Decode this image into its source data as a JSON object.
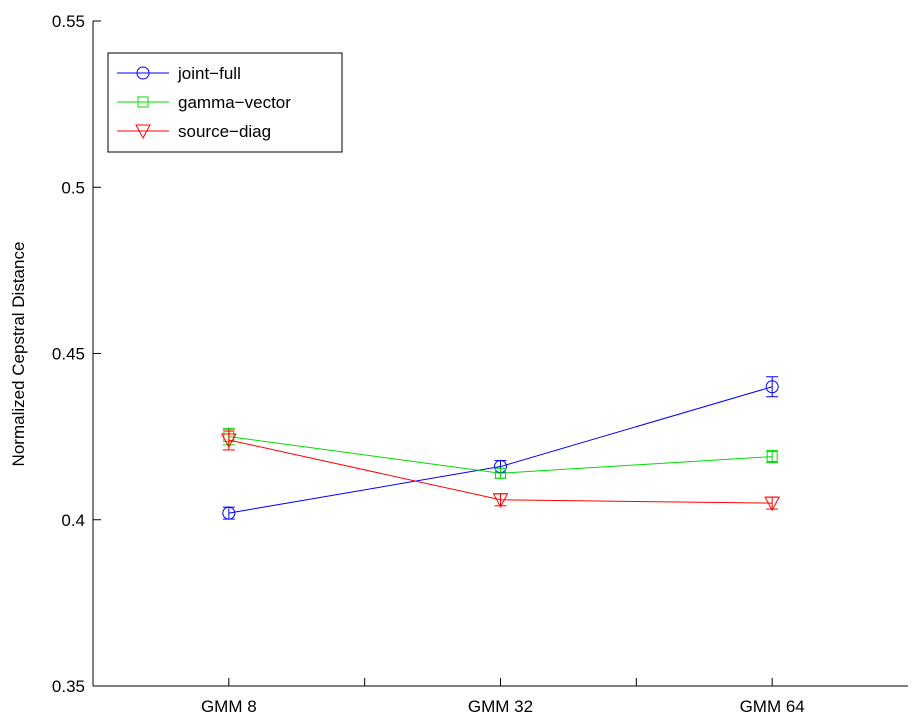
{
  "chart_data": {
    "type": "line",
    "title": "",
    "xlabel": "",
    "ylabel": "Normalized Cepstral Distance",
    "categories": [
      "GMM 8",
      "GMM 32",
      "GMM 64"
    ],
    "ylim": [
      0.35,
      0.55
    ],
    "yticks": [
      "0.35",
      "0.4",
      "0.45",
      "0.5",
      "0.55"
    ],
    "xlim": [
      0.5,
      3.5
    ],
    "x": [
      1,
      2,
      3
    ],
    "grid": false,
    "legend_position": "top-left",
    "series": [
      {
        "name": "joint−full",
        "color": "#0000ff",
        "marker": "circle",
        "values": [
          0.402,
          0.416,
          0.44
        ],
        "err": [
          0.0018,
          0.0018,
          0.003
        ]
      },
      {
        "name": "gamma−vector",
        "color": "#00dd00",
        "marker": "square",
        "values": [
          0.425,
          0.414,
          0.419
        ],
        "err": [
          0.0025,
          0.0015,
          0.0018
        ]
      },
      {
        "name": "source−diag",
        "color": "#ff0000",
        "marker": "triangle-down",
        "values": [
          0.424,
          0.406,
          0.405
        ],
        "err": [
          0.003,
          0.0018,
          0.0018
        ]
      }
    ]
  }
}
